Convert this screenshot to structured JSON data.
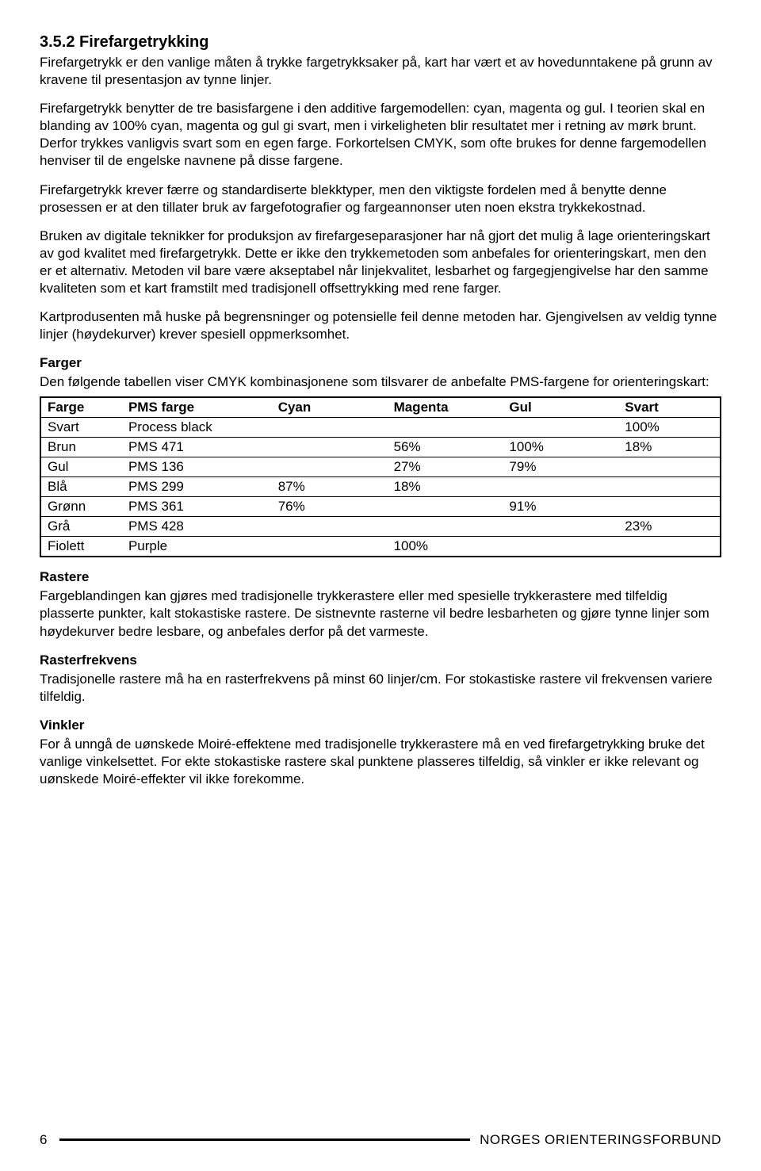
{
  "section": {
    "number_title": "3.5.2 Firefargetrykking",
    "paragraphs": [
      "Firefargetrykk er den vanlige måten å trykke fargetrykksaker på, kart har vært et av hovedunntakene på grunn av kravene til presentasjon av tynne linjer.",
      "Firefargetrykk benytter de tre basisfargene i den additive fargemodellen: cyan, magenta og gul. I teorien skal en blanding av 100% cyan, magenta og gul gi svart, men i virkeligheten blir resultatet mer i retning av mørk brunt. Derfor trykkes vanligvis svart som en egen farge. Forkortelsen CMYK, som ofte brukes for denne fargemodellen henviser til de engelske navnene på disse fargene.",
      "Firefargetrykk krever færre og standardiserte blekktyper, men den viktigste fordelen med å benytte denne prosessen er at den tillater bruk av fargefotografier og fargeannonser uten noen ekstra trykkekostnad.",
      "Bruken av digitale teknikker for produksjon av firefargeseparasjoner har nå gjort det mulig å lage orienteringskart av god kvalitet med firefargetrykk. Dette er ikke den trykkemetoden som anbefales for orienteringskart, men den er et alternativ. Metoden vil bare være akseptabel når linjekvalitet, lesbarhet og fargegjengivelse har den samme kvaliteten som et kart framstilt med tradisjonell offsettrykking med rene farger.",
      "Kartprodusenten må huske på begrensninger og potensielle feil denne metoden har. Gjengivelsen av veldig tynne linjer (høydekurver) krever spesiell oppmerksomhet."
    ]
  },
  "farger": {
    "heading": "Farger",
    "intro": "Den følgende tabellen viser CMYK kombinasjonene som tilsvarer de anbefalte PMS-fargene for orienteringskart:",
    "table": {
      "columns": [
        "Farge",
        "PMS farge",
        "Cyan",
        "Magenta",
        "Gul",
        "Svart"
      ],
      "rows": [
        [
          "Svart",
          "Process black",
          "",
          "",
          "",
          "100%"
        ],
        [
          "Brun",
          "PMS 471",
          "",
          "56%",
          "100%",
          "18%"
        ],
        [
          "Gul",
          "PMS 136",
          "",
          "27%",
          "79%",
          ""
        ],
        [
          "Blå",
          "PMS 299",
          "87%",
          "18%",
          "",
          ""
        ],
        [
          "Grønn",
          "PMS 361",
          "76%",
          "",
          "91%",
          ""
        ],
        [
          "Grå",
          "PMS 428",
          "",
          "",
          "",
          "23%"
        ],
        [
          "Fiolett",
          "Purple",
          "",
          "100%",
          "",
          ""
        ]
      ]
    }
  },
  "rastere": {
    "heading": "Rastere",
    "text": "Fargeblandingen kan gjøres med tradisjonelle trykkerastere eller med spesielle trykkerastere med tilfeldig plasserte punkter, kalt stokastiske rastere. De sistnevnte rasterne vil bedre lesbarheten og gjøre tynne linjer som høydekurver bedre lesbare, og anbefales derfor på det varmeste."
  },
  "rasterfrekvens": {
    "heading": "Rasterfrekvens",
    "text": "Tradisjonelle rastere må ha en rasterfrekvens på minst 60 linjer/cm. For stokastiske rastere vil frekvensen variere tilfeldig."
  },
  "vinkler": {
    "heading": "Vinkler",
    "text": "For å unngå de uønskede Moiré-effektene med tradisjonelle trykkerastere må en ved firefargetrykking bruke det vanlige vinkelsettet. For ekte stokastiske rastere skal punktene plasseres tilfeldig, så vinkler er ikke relevant og uønskede Moiré-effekter vil ikke forekomme."
  },
  "footer": {
    "page": "6",
    "org": "NORGES ORIENTERINGSFORBUND"
  }
}
